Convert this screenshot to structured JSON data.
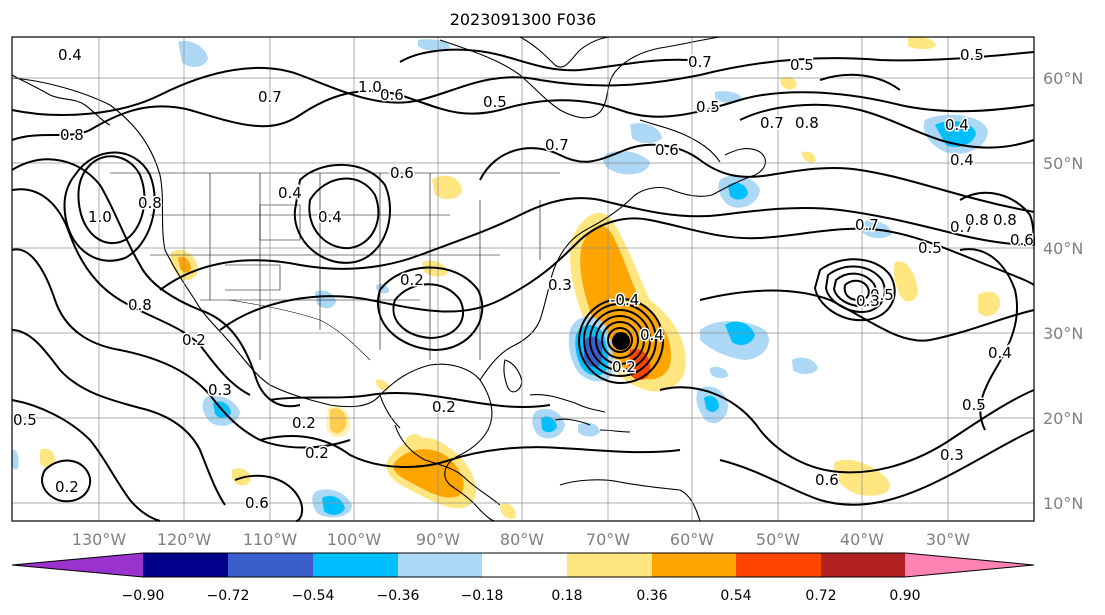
{
  "title": "2023091300 F036",
  "longitude_labels": [
    "130°W",
    "120°W",
    "110°W",
    "100°W",
    "90°W",
    "80°W",
    "70°W",
    "60°W",
    "50°W",
    "40°W",
    "30°W"
  ],
  "latitude_labels": [
    "60°N",
    "50°N",
    "40°N",
    "30°N",
    "20°N",
    "10°N"
  ],
  "contour_labels": [
    "0.4",
    "0.7",
    "1.0",
    "0.6",
    "0.5",
    "0.6",
    "0.5",
    "0.7",
    "0.5",
    "0.7",
    "0.8",
    "0.4",
    "0.8",
    "0.6",
    "0.5",
    "0.7",
    "0.5",
    "0.4",
    "0.8",
    "1.0",
    "0.8",
    "0.4",
    "0.6",
    "0.7",
    "0.2",
    "0.3",
    "0.4",
    "0.7",
    "0.5",
    "0.8",
    "0.2",
    "0.3",
    "0.2",
    "0.2",
    "0.2",
    "0.6",
    "0.6",
    "0.2",
    "0.3",
    "0.5",
    "0.4",
    "0.5",
    "0.3",
    "0.2",
    "0.4",
    "0.8"
  ],
  "shading_labels": [
    "-0.4"
  ],
  "colorbar": {
    "ticks": [
      "−0.90",
      "−0.72",
      "−0.54",
      "−0.36",
      "−0.18",
      "0.18",
      "0.36",
      "0.54",
      "0.72",
      "0.90"
    ],
    "colors": [
      "#9a32cd",
      "#00008b",
      "#3a5fcd",
      "#00bfff",
      "#add8f5",
      "#ffffff",
      "#ffe680",
      "#ffa500",
      "#ff4500",
      "#b22222",
      "#ff83b3"
    ]
  },
  "colors": {
    "neg_weak": "#add8f5",
    "neg_mid": "#00bfff",
    "neg_strong": "#3a5fcd",
    "pos_weak": "#ffe680",
    "pos_mid": "#ffa500",
    "pos_strong": "#ff4500"
  }
}
